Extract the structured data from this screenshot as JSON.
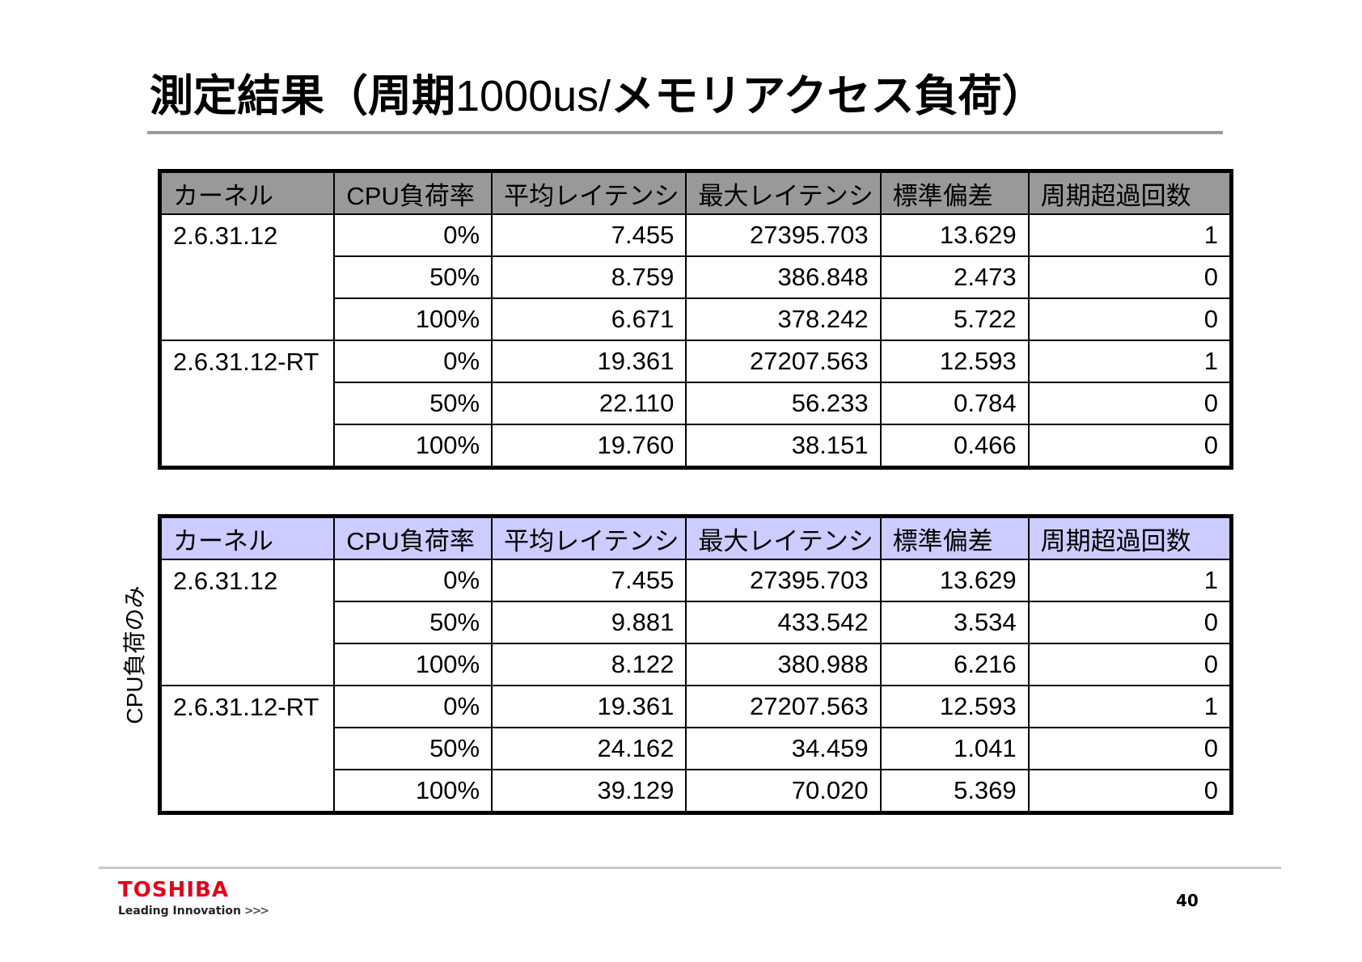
{
  "title": {
    "part1": "測定結果（周期",
    "part2": "1000us/",
    "part3": "メモリアクセス負荷）"
  },
  "columns": [
    "カーネル",
    "CPU負荷率",
    "平均レイテンシ",
    "最大レイテンシ",
    "標準偏差",
    "周期超過回数"
  ],
  "table1": {
    "groups": [
      {
        "kernel": "2.6.31.12",
        "rows": [
          {
            "load": "0%",
            "avg": "7.455",
            "max": "27395.703",
            "std": "13.629",
            "over": "1"
          },
          {
            "load": "50%",
            "avg": "8.759",
            "max": "386.848",
            "std": "2.473",
            "over": "0"
          },
          {
            "load": "100%",
            "avg": "6.671",
            "max": "378.242",
            "std": "5.722",
            "over": "0"
          }
        ]
      },
      {
        "kernel": "2.6.31.12-RT",
        "rows": [
          {
            "load": "0%",
            "avg": "19.361",
            "max": "27207.563",
            "std": "12.593",
            "over": "1"
          },
          {
            "load": "50%",
            "avg": "22.110",
            "max": "56.233",
            "std": "0.784",
            "over": "0"
          },
          {
            "load": "100%",
            "avg": "19.760",
            "max": "38.151",
            "std": "0.466",
            "over": "0"
          }
        ]
      }
    ]
  },
  "table2": {
    "side_label": "CPU負荷のみ",
    "groups": [
      {
        "kernel": "2.6.31.12",
        "rows": [
          {
            "load": "0%",
            "avg": "7.455",
            "max": "27395.703",
            "std": "13.629",
            "over": "1"
          },
          {
            "load": "50%",
            "avg": "9.881",
            "max": "433.542",
            "std": "3.534",
            "over": "0"
          },
          {
            "load": "100%",
            "avg": "8.122",
            "max": "380.988",
            "std": "6.216",
            "over": "0"
          }
        ]
      },
      {
        "kernel": "2.6.31.12-RT",
        "rows": [
          {
            "load": "0%",
            "avg": "19.361",
            "max": "27207.563",
            "std": "12.593",
            "over": "1"
          },
          {
            "load": "50%",
            "avg": "24.162",
            "max": "34.459",
            "std": "1.041",
            "over": "0"
          },
          {
            "load": "100%",
            "avg": "39.129",
            "max": "70.020",
            "std": "5.369",
            "over": "0"
          }
        ]
      }
    ]
  },
  "footer": {
    "logo": "TOSHIBA",
    "tagline": "Leading Innovation",
    "tagline_arrows": ">>>",
    "page_number": "40"
  },
  "colors": {
    "header_gray": "#999999",
    "header_lavender": "#ccccff",
    "logo_red": "#e3001b",
    "rule_gray": "#9b9b9b"
  }
}
